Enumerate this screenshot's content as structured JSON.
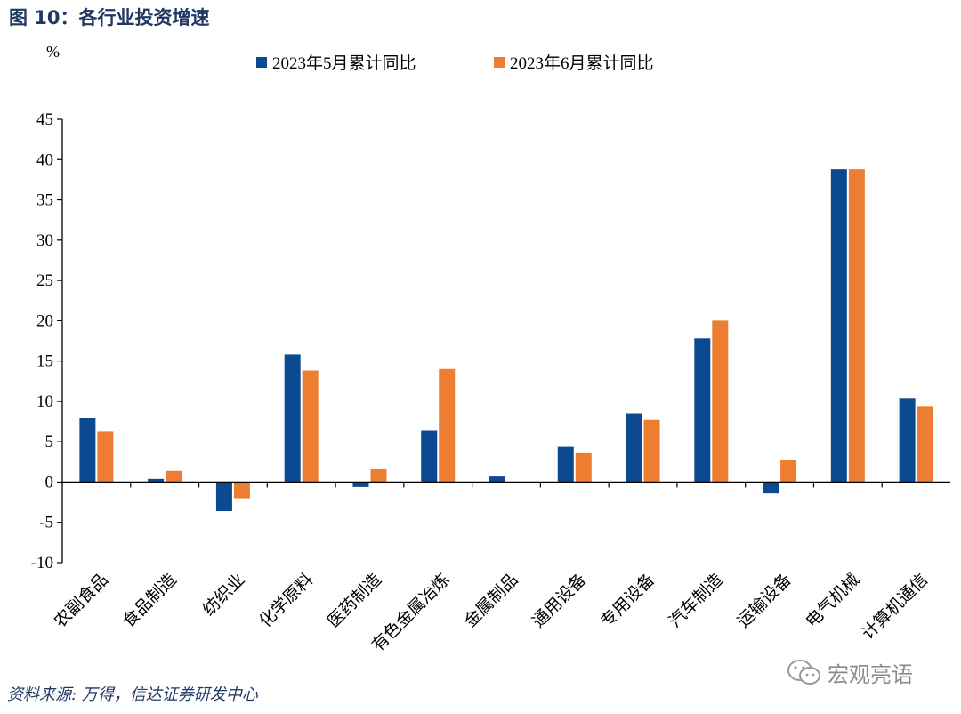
{
  "figure_title": "图 10：各行业投资增速",
  "source": "资料来源: 万得，信达证券研发中心",
  "watermark": "宏观亮语",
  "colors": {
    "may": "#0b4a91",
    "june": "#ed7d31",
    "title": "#1f3864",
    "axis": "#000000"
  },
  "chart_data": {
    "type": "bar",
    "ylabel": "%",
    "ylim": [
      -10,
      45
    ],
    "yticks": [
      -10,
      -5,
      0,
      5,
      10,
      15,
      20,
      25,
      30,
      35,
      40,
      45
    ],
    "grid": false,
    "legend_position": "top-center",
    "categories": [
      "农副食品",
      "食品制造",
      "纺织业",
      "化学原料",
      "医药制造",
      "有色金属冶炼",
      "金属制品",
      "通用设备",
      "专用设备",
      "汽车制造",
      "运输设备",
      "电气机械",
      "计算机通信"
    ],
    "series": [
      {
        "name": "2023年5月累计同比",
        "values": [
          8.0,
          0.4,
          -3.6,
          15.8,
          -0.6,
          6.4,
          0.7,
          4.4,
          8.5,
          17.8,
          -1.4,
          38.8,
          10.4
        ]
      },
      {
        "name": "2023年6月累计同比",
        "values": [
          6.3,
          1.4,
          -2.0,
          13.8,
          1.6,
          14.1,
          null,
          3.6,
          7.7,
          20.0,
          2.7,
          38.8,
          9.4
        ]
      }
    ]
  }
}
